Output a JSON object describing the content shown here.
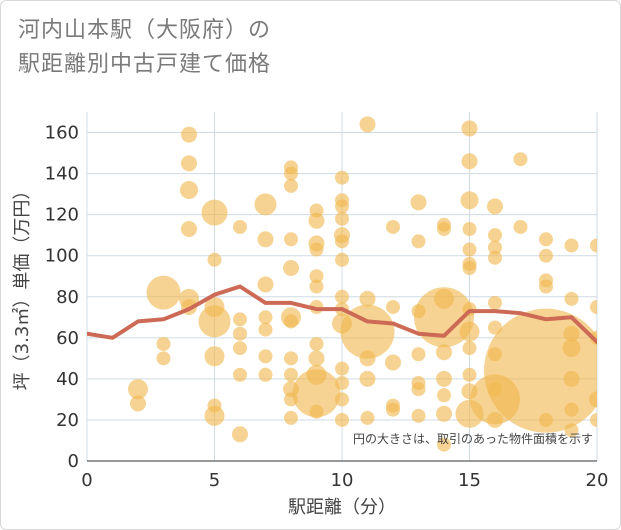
{
  "title_line1": "河内山本駅（大阪府）の",
  "title_line2": "駅距離別中古戸建て価格",
  "chart_data": {
    "type": "scatter",
    "xlabel": "駅距離（分）",
    "ylabel": "坪（3.3㎡）単価（万円）",
    "xlim": [
      0,
      20
    ],
    "ylim": [
      0,
      170
    ],
    "xticks": [
      0,
      5,
      10,
      15,
      20
    ],
    "yticks": [
      0,
      20,
      40,
      60,
      80,
      100,
      120,
      140,
      160
    ],
    "grid": true,
    "annotation": "円の大きさは、取引のあった物件面積を示す",
    "colors": {
      "bubble": "#f0b84f",
      "line": "#cd6a55",
      "grid": "#cfdbe3"
    },
    "line": {
      "x": [
        0,
        1,
        2,
        3,
        4,
        5,
        6,
        7,
        8,
        9,
        10,
        11,
        12,
        13,
        14,
        15,
        16,
        17,
        18,
        19,
        20
      ],
      "y": [
        62,
        60,
        68,
        69,
        74,
        81,
        85,
        77,
        77,
        74,
        74,
        68,
        67,
        62,
        61,
        73,
        73,
        72,
        69,
        70,
        58
      ]
    },
    "points": [
      {
        "x": 2,
        "y": 35,
        "r": 10
      },
      {
        "x": 2,
        "y": 28,
        "r": 8
      },
      {
        "x": 3,
        "y": 82,
        "r": 17
      },
      {
        "x": 3,
        "y": 57,
        "r": 7
      },
      {
        "x": 3,
        "y": 50,
        "r": 7
      },
      {
        "x": 4,
        "y": 159,
        "r": 8
      },
      {
        "x": 4,
        "y": 145,
        "r": 8
      },
      {
        "x": 4,
        "y": 132,
        "r": 9
      },
      {
        "x": 4,
        "y": 113,
        "r": 8
      },
      {
        "x": 4,
        "y": 79,
        "r": 10
      },
      {
        "x": 4,
        "y": 75,
        "r": 8
      },
      {
        "x": 5,
        "y": 121,
        "r": 13
      },
      {
        "x": 5,
        "y": 98,
        "r": 7
      },
      {
        "x": 5,
        "y": 75,
        "r": 10
      },
      {
        "x": 5,
        "y": 68,
        "r": 16
      },
      {
        "x": 5,
        "y": 51,
        "r": 10
      },
      {
        "x": 5,
        "y": 27,
        "r": 7
      },
      {
        "x": 5,
        "y": 22,
        "r": 10
      },
      {
        "x": 6,
        "y": 114,
        "r": 7
      },
      {
        "x": 6,
        "y": 69,
        "r": 7
      },
      {
        "x": 6,
        "y": 62,
        "r": 7
      },
      {
        "x": 6,
        "y": 55,
        "r": 7
      },
      {
        "x": 6,
        "y": 42,
        "r": 7
      },
      {
        "x": 6,
        "y": 13,
        "r": 8
      },
      {
        "x": 7,
        "y": 125,
        "r": 11
      },
      {
        "x": 7,
        "y": 108,
        "r": 8
      },
      {
        "x": 7,
        "y": 86,
        "r": 8
      },
      {
        "x": 7,
        "y": 70,
        "r": 7
      },
      {
        "x": 7,
        "y": 64,
        "r": 7
      },
      {
        "x": 7,
        "y": 51,
        "r": 7
      },
      {
        "x": 7,
        "y": 42,
        "r": 7
      },
      {
        "x": 8,
        "y": 143,
        "r": 7
      },
      {
        "x": 8,
        "y": 140,
        "r": 7
      },
      {
        "x": 8,
        "y": 134,
        "r": 7
      },
      {
        "x": 8,
        "y": 108,
        "r": 7
      },
      {
        "x": 8,
        "y": 94,
        "r": 8
      },
      {
        "x": 8,
        "y": 70,
        "r": 10
      },
      {
        "x": 8,
        "y": 68,
        "r": 7
      },
      {
        "x": 8,
        "y": 50,
        "r": 7
      },
      {
        "x": 8,
        "y": 42,
        "r": 7
      },
      {
        "x": 8,
        "y": 35,
        "r": 8
      },
      {
        "x": 8,
        "y": 30,
        "r": 7
      },
      {
        "x": 8,
        "y": 21,
        "r": 7
      },
      {
        "x": 9,
        "y": 122,
        "r": 7
      },
      {
        "x": 9,
        "y": 117,
        "r": 8
      },
      {
        "x": 9,
        "y": 106,
        "r": 8
      },
      {
        "x": 9,
        "y": 103,
        "r": 7
      },
      {
        "x": 9,
        "y": 90,
        "r": 7
      },
      {
        "x": 9,
        "y": 85,
        "r": 7
      },
      {
        "x": 9,
        "y": 75,
        "r": 7
      },
      {
        "x": 9,
        "y": 57,
        "r": 7
      },
      {
        "x": 9,
        "y": 50,
        "r": 8
      },
      {
        "x": 9,
        "y": 42,
        "r": 10
      },
      {
        "x": 9,
        "y": 33,
        "r": 24
      },
      {
        "x": 9,
        "y": 24,
        "r": 7
      },
      {
        "x": 10,
        "y": 138,
        "r": 7
      },
      {
        "x": 10,
        "y": 127,
        "r": 7
      },
      {
        "x": 10,
        "y": 124,
        "r": 7
      },
      {
        "x": 10,
        "y": 118,
        "r": 7
      },
      {
        "x": 10,
        "y": 110,
        "r": 8
      },
      {
        "x": 10,
        "y": 107,
        "r": 7
      },
      {
        "x": 10,
        "y": 98,
        "r": 7
      },
      {
        "x": 10,
        "y": 80,
        "r": 7
      },
      {
        "x": 10,
        "y": 74,
        "r": 7
      },
      {
        "x": 10,
        "y": 67,
        "r": 10
      },
      {
        "x": 10,
        "y": 45,
        "r": 7
      },
      {
        "x": 10,
        "y": 38,
        "r": 7
      },
      {
        "x": 10,
        "y": 30,
        "r": 7
      },
      {
        "x": 10,
        "y": 20,
        "r": 7
      },
      {
        "x": 11,
        "y": 164,
        "r": 8
      },
      {
        "x": 11,
        "y": 79,
        "r": 8
      },
      {
        "x": 11,
        "y": 63,
        "r": 27
      },
      {
        "x": 11,
        "y": 50,
        "r": 8
      },
      {
        "x": 11,
        "y": 40,
        "r": 8
      },
      {
        "x": 11,
        "y": 21,
        "r": 7
      },
      {
        "x": 12,
        "y": 114,
        "r": 7
      },
      {
        "x": 12,
        "y": 75,
        "r": 7
      },
      {
        "x": 12,
        "y": 48,
        "r": 8
      },
      {
        "x": 12,
        "y": 27,
        "r": 7
      },
      {
        "x": 12,
        "y": 25,
        "r": 7
      },
      {
        "x": 13,
        "y": 126,
        "r": 8
      },
      {
        "x": 13,
        "y": 107,
        "r": 7
      },
      {
        "x": 13,
        "y": 73,
        "r": 7
      },
      {
        "x": 13,
        "y": 52,
        "r": 7
      },
      {
        "x": 13,
        "y": 38,
        "r": 7
      },
      {
        "x": 13,
        "y": 35,
        "r": 7
      },
      {
        "x": 13,
        "y": 22,
        "r": 7
      },
      {
        "x": 14,
        "y": 115,
        "r": 7
      },
      {
        "x": 14,
        "y": 113,
        "r": 7
      },
      {
        "x": 14,
        "y": 79,
        "r": 10
      },
      {
        "x": 14,
        "y": 70,
        "r": 30
      },
      {
        "x": 14,
        "y": 53,
        "r": 8
      },
      {
        "x": 14,
        "y": 40,
        "r": 8
      },
      {
        "x": 14,
        "y": 32,
        "r": 7
      },
      {
        "x": 14,
        "y": 23,
        "r": 8
      },
      {
        "x": 14,
        "y": 8,
        "r": 7
      },
      {
        "x": 15,
        "y": 162,
        "r": 8
      },
      {
        "x": 15,
        "y": 146,
        "r": 8
      },
      {
        "x": 15,
        "y": 127,
        "r": 9
      },
      {
        "x": 15,
        "y": 113,
        "r": 7
      },
      {
        "x": 15,
        "y": 103,
        "r": 7
      },
      {
        "x": 15,
        "y": 96,
        "r": 7
      },
      {
        "x": 15,
        "y": 94,
        "r": 7
      },
      {
        "x": 15,
        "y": 74,
        "r": 7
      },
      {
        "x": 15,
        "y": 63,
        "r": 10
      },
      {
        "x": 15,
        "y": 55,
        "r": 7
      },
      {
        "x": 15,
        "y": 42,
        "r": 7
      },
      {
        "x": 15,
        "y": 34,
        "r": 8
      },
      {
        "x": 15,
        "y": 23,
        "r": 14
      },
      {
        "x": 16,
        "y": 124,
        "r": 8
      },
      {
        "x": 16,
        "y": 110,
        "r": 7
      },
      {
        "x": 16,
        "y": 104,
        "r": 7
      },
      {
        "x": 16,
        "y": 99,
        "r": 7
      },
      {
        "x": 16,
        "y": 77,
        "r": 7
      },
      {
        "x": 16,
        "y": 65,
        "r": 7
      },
      {
        "x": 16,
        "y": 52,
        "r": 7
      },
      {
        "x": 16,
        "y": 35,
        "r": 7
      },
      {
        "x": 16,
        "y": 30,
        "r": 25
      },
      {
        "x": 16,
        "y": 20,
        "r": 8
      },
      {
        "x": 17,
        "y": 147,
        "r": 7
      },
      {
        "x": 17,
        "y": 114,
        "r": 7
      },
      {
        "x": 18,
        "y": 108,
        "r": 7
      },
      {
        "x": 18,
        "y": 100,
        "r": 7
      },
      {
        "x": 18,
        "y": 88,
        "r": 7
      },
      {
        "x": 18,
        "y": 85,
        "r": 7
      },
      {
        "x": 18,
        "y": 44,
        "r": 62
      },
      {
        "x": 18,
        "y": 20,
        "r": 7
      },
      {
        "x": 19,
        "y": 105,
        "r": 7
      },
      {
        "x": 19,
        "y": 79,
        "r": 7
      },
      {
        "x": 19,
        "y": 62,
        "r": 8
      },
      {
        "x": 19,
        "y": 55,
        "r": 9
      },
      {
        "x": 19,
        "y": 40,
        "r": 8
      },
      {
        "x": 19,
        "y": 25,
        "r": 7
      },
      {
        "x": 19,
        "y": 15,
        "r": 7
      },
      {
        "x": 20,
        "y": 105,
        "r": 7
      },
      {
        "x": 20,
        "y": 75,
        "r": 7
      },
      {
        "x": 20,
        "y": 60,
        "r": 7
      },
      {
        "x": 20,
        "y": 30,
        "r": 8
      },
      {
        "x": 20,
        "y": 20,
        "r": 7
      }
    ]
  }
}
